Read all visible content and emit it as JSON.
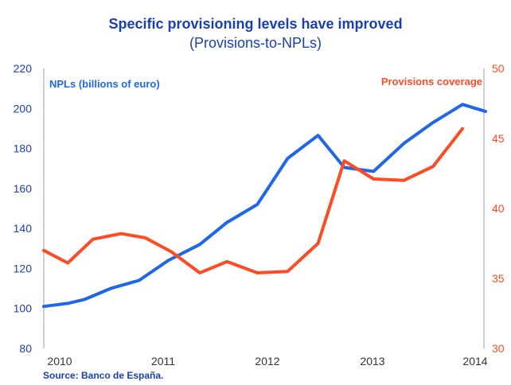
{
  "header": {
    "title": "Specific provisioning levels have improved",
    "subtitle": "(Provisions-to-NPLs)"
  },
  "footer": {
    "source": "Source: Banco de España."
  },
  "colors": {
    "npl": "#1f66e8",
    "provisions": "#ff4b23",
    "title": "#1a3fb0"
  },
  "chart_data": {
    "type": "line",
    "title": "Specific provisioning levels have improved",
    "subtitle": "(Provisions-to-NPLs)",
    "x_tick_labels": [
      "2010",
      "2011",
      "2012",
      "2013",
      "2014"
    ],
    "y_left": {
      "ylim": [
        80,
        220
      ],
      "ticks": [
        "220",
        "200",
        "180",
        "160",
        "140",
        "120",
        "100",
        "80"
      ]
    },
    "y_right": {
      "ylim": [
        30,
        50
      ],
      "ticks": [
        "50",
        "45",
        "40",
        "35",
        "30"
      ]
    },
    "grid": false,
    "legend": [
      {
        "label": "NPLs (billions of euro)",
        "placement": "top-left",
        "color": "#1f66e8"
      },
      {
        "label": "Provisions coverage",
        "placement": "top-right",
        "color": "#ff4b23"
      }
    ],
    "series": [
      {
        "name": "NPLs (billions of euro)",
        "axis": "left",
        "color": "#1f66e8",
        "x": [
          2009.91,
          2010.14,
          2010.3,
          2010.55,
          2010.82,
          2011.1,
          2011.4,
          2011.66,
          2011.95,
          2012.24,
          2012.53,
          2012.78,
          2013.06,
          2013.35,
          2013.63,
          2013.91,
          2014.13
        ],
        "y": [
          101,
          102.5,
          104.5,
          110,
          114,
          124,
          132,
          143,
          152,
          175,
          186.5,
          170.5,
          168.5,
          182.5,
          193,
          202,
          198.5
        ]
      },
      {
        "name": "Provisions coverage",
        "axis": "right",
        "color": "#ff4b23",
        "x": [
          2009.91,
          2010.14,
          2010.38,
          2010.65,
          2010.88,
          2011.13,
          2011.4,
          2011.66,
          2011.95,
          2012.24,
          2012.53,
          2012.78,
          2013.06,
          2013.35,
          2013.63,
          2013.91
        ],
        "y": [
          37.0,
          36.1,
          37.8,
          38.2,
          37.9,
          36.9,
          35.4,
          36.2,
          35.4,
          35.5,
          37.5,
          43.4,
          42.1,
          42.0,
          43.0,
          45.7
        ]
      }
    ]
  }
}
